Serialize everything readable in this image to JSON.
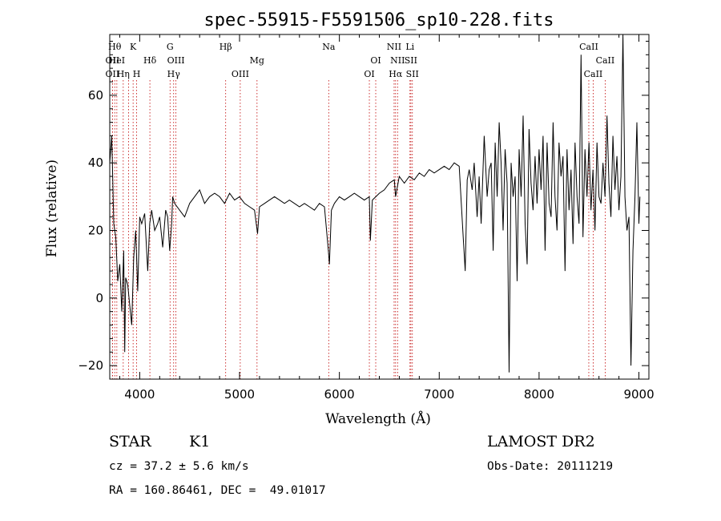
{
  "chart_data": {
    "type": "line",
    "title": "spec-55915-F5591506_sp10-228.fits",
    "xlabel": "Wavelength (Å)",
    "ylabel": "Flux (relative)",
    "xlim": [
      3700,
      9100
    ],
    "ylim": [
      -24,
      78
    ],
    "xticks": [
      4000,
      5000,
      6000,
      7000,
      8000,
      9000
    ],
    "yticks": [
      -20,
      0,
      20,
      40,
      60
    ],
    "grid": false,
    "series": [
      {
        "values": [
          [
            3700,
            40
          ],
          [
            3720,
            48
          ],
          [
            3740,
            22
          ],
          [
            3760,
            18
          ],
          [
            3780,
            5
          ],
          [
            3800,
            10
          ],
          [
            3820,
            -4
          ],
          [
            3840,
            14
          ],
          [
            3850,
            -16
          ],
          [
            3860,
            6
          ],
          [
            3880,
            4
          ],
          [
            3900,
            -2
          ],
          [
            3920,
            -8
          ],
          [
            3940,
            12
          ],
          [
            3960,
            20
          ],
          [
            3980,
            2
          ],
          [
            4000,
            24
          ],
          [
            4020,
            22
          ],
          [
            4050,
            25
          ],
          [
            4080,
            8
          ],
          [
            4100,
            22
          ],
          [
            4120,
            26
          ],
          [
            4150,
            20
          ],
          [
            4180,
            22
          ],
          [
            4200,
            24
          ],
          [
            4230,
            15
          ],
          [
            4260,
            26
          ],
          [
            4280,
            24
          ],
          [
            4300,
            14
          ],
          [
            4320,
            22
          ],
          [
            4330,
            30
          ],
          [
            4350,
            28
          ],
          [
            4400,
            26
          ],
          [
            4450,
            24
          ],
          [
            4500,
            28
          ],
          [
            4550,
            30
          ],
          [
            4600,
            32
          ],
          [
            4650,
            28
          ],
          [
            4700,
            30
          ],
          [
            4750,
            31
          ],
          [
            4800,
            30
          ],
          [
            4850,
            28
          ],
          [
            4900,
            31
          ],
          [
            4950,
            29
          ],
          [
            5000,
            30
          ],
          [
            5050,
            28
          ],
          [
            5100,
            27
          ],
          [
            5150,
            26
          ],
          [
            5180,
            19
          ],
          [
            5200,
            27
          ],
          [
            5250,
            28
          ],
          [
            5300,
            29
          ],
          [
            5350,
            30
          ],
          [
            5400,
            29
          ],
          [
            5450,
            28
          ],
          [
            5500,
            29
          ],
          [
            5550,
            28
          ],
          [
            5600,
            27
          ],
          [
            5650,
            28
          ],
          [
            5700,
            27
          ],
          [
            5750,
            26
          ],
          [
            5800,
            28
          ],
          [
            5850,
            27
          ],
          [
            5890,
            14
          ],
          [
            5900,
            10
          ],
          [
            5920,
            26
          ],
          [
            5950,
            28
          ],
          [
            6000,
            30
          ],
          [
            6050,
            29
          ],
          [
            6100,
            30
          ],
          [
            6150,
            31
          ],
          [
            6200,
            30
          ],
          [
            6250,
            29
          ],
          [
            6300,
            30
          ],
          [
            6310,
            17
          ],
          [
            6330,
            29
          ],
          [
            6400,
            31
          ],
          [
            6450,
            32
          ],
          [
            6500,
            34
          ],
          [
            6550,
            35
          ],
          [
            6563,
            30
          ],
          [
            6600,
            36
          ],
          [
            6650,
            34
          ],
          [
            6700,
            36
          ],
          [
            6750,
            35
          ],
          [
            6800,
            37
          ],
          [
            6850,
            36
          ],
          [
            6900,
            38
          ],
          [
            6950,
            37
          ],
          [
            7000,
            38
          ],
          [
            7050,
            39
          ],
          [
            7100,
            38
          ],
          [
            7150,
            40
          ],
          [
            7200,
            39
          ],
          [
            7240,
            18
          ],
          [
            7260,
            8
          ],
          [
            7280,
            35
          ],
          [
            7300,
            38
          ],
          [
            7330,
            32
          ],
          [
            7350,
            40
          ],
          [
            7380,
            24
          ],
          [
            7400,
            36
          ],
          [
            7420,
            22
          ],
          [
            7450,
            48
          ],
          [
            7480,
            30
          ],
          [
            7500,
            38
          ],
          [
            7520,
            40
          ],
          [
            7540,
            14
          ],
          [
            7560,
            46
          ],
          [
            7580,
            30
          ],
          [
            7600,
            52
          ],
          [
            7620,
            40
          ],
          [
            7640,
            20
          ],
          [
            7660,
            44
          ],
          [
            7680,
            34
          ],
          [
            7700,
            -22
          ],
          [
            7720,
            40
          ],
          [
            7740,
            30
          ],
          [
            7760,
            36
          ],
          [
            7780,
            5
          ],
          [
            7800,
            44
          ],
          [
            7820,
            30
          ],
          [
            7840,
            54
          ],
          [
            7860,
            22
          ],
          [
            7880,
            10
          ],
          [
            7900,
            50
          ],
          [
            7920,
            34
          ],
          [
            7940,
            26
          ],
          [
            7960,
            42
          ],
          [
            7980,
            28
          ],
          [
            8000,
            44
          ],
          [
            8020,
            32
          ],
          [
            8040,
            48
          ],
          [
            8060,
            14
          ],
          [
            8080,
            46
          ],
          [
            8100,
            28
          ],
          [
            8120,
            24
          ],
          [
            8140,
            52
          ],
          [
            8160,
            30
          ],
          [
            8180,
            20
          ],
          [
            8200,
            46
          ],
          [
            8220,
            36
          ],
          [
            8240,
            42
          ],
          [
            8260,
            8
          ],
          [
            8280,
            44
          ],
          [
            8300,
            26
          ],
          [
            8320,
            38
          ],
          [
            8340,
            16
          ],
          [
            8360,
            46
          ],
          [
            8380,
            30
          ],
          [
            8400,
            22
          ],
          [
            8420,
            72
          ],
          [
            8440,
            18
          ],
          [
            8460,
            44
          ],
          [
            8480,
            30
          ],
          [
            8500,
            46
          ],
          [
            8520,
            26
          ],
          [
            8540,
            38
          ],
          [
            8560,
            20
          ],
          [
            8580,
            46
          ],
          [
            8600,
            30
          ],
          [
            8620,
            28
          ],
          [
            8640,
            40
          ],
          [
            8660,
            30
          ],
          [
            8680,
            54
          ],
          [
            8700,
            34
          ],
          [
            8720,
            24
          ],
          [
            8740,
            48
          ],
          [
            8760,
            32
          ],
          [
            8780,
            42
          ],
          [
            8800,
            26
          ],
          [
            8820,
            36
          ],
          [
            8840,
            80
          ],
          [
            8860,
            30
          ],
          [
            8880,
            20
          ],
          [
            8900,
            24
          ],
          [
            8920,
            -20
          ],
          [
            8940,
            14
          ],
          [
            8960,
            30
          ],
          [
            8980,
            52
          ],
          [
            9000,
            22
          ],
          [
            9010,
            30
          ]
        ]
      }
    ],
    "line_markers": [
      {
        "x": 3750,
        "label": "Hθ",
        "row": 0
      },
      {
        "x": 3727,
        "label": "OII",
        "row": 1
      },
      {
        "x": 3727,
        "label": "OII",
        "row": 2
      },
      {
        "x": 3771,
        "label": "HeI",
        "row": 1
      },
      {
        "x": 3835,
        "label": "Hη",
        "row": 2
      },
      {
        "x": 3889,
        "label": "",
        "row": 0
      },
      {
        "x": 3934,
        "label": "K",
        "row": 0
      },
      {
        "x": 3969,
        "label": "H",
        "row": 2
      },
      {
        "x": 4102,
        "label": "Hδ",
        "row": 1
      },
      {
        "x": 4304,
        "label": "G",
        "row": 0
      },
      {
        "x": 4340,
        "label": "Hγ",
        "row": 2
      },
      {
        "x": 4363,
        "label": "OIII",
        "row": 1
      },
      {
        "x": 4861,
        "label": "Hβ",
        "row": 0
      },
      {
        "x": 5007,
        "label": "OIII",
        "row": 2
      },
      {
        "x": 5175,
        "label": "Mg",
        "row": 1
      },
      {
        "x": 5893,
        "label": "Na",
        "row": 0
      },
      {
        "x": 6300,
        "label": "OI",
        "row": 2
      },
      {
        "x": 6364,
        "label": "OI",
        "row": 1
      },
      {
        "x": 6548,
        "label": "NII",
        "row": 0
      },
      {
        "x": 6563,
        "label": "Hα",
        "row": 2
      },
      {
        "x": 6583,
        "label": "NII",
        "row": 1
      },
      {
        "x": 6707,
        "label": "Li",
        "row": 0
      },
      {
        "x": 6716,
        "label": "SII",
        "row": 1
      },
      {
        "x": 6731,
        "label": "SII",
        "row": 2
      },
      {
        "x": 8498,
        "label": "CaII",
        "row": 0
      },
      {
        "x": 8542,
        "label": "CaII",
        "row": 2
      },
      {
        "x": 8662,
        "label": "CaII",
        "row": 1
      }
    ]
  },
  "info": {
    "class_label": "STAR",
    "subclass": "K1",
    "survey": "LAMOST DR2",
    "cz": "cz = 37.2 ± 5.6 km/s",
    "obs_date": "Obs-Date: 20111219",
    "radec": "RA = 160.86461, DEC =  49.01017"
  }
}
